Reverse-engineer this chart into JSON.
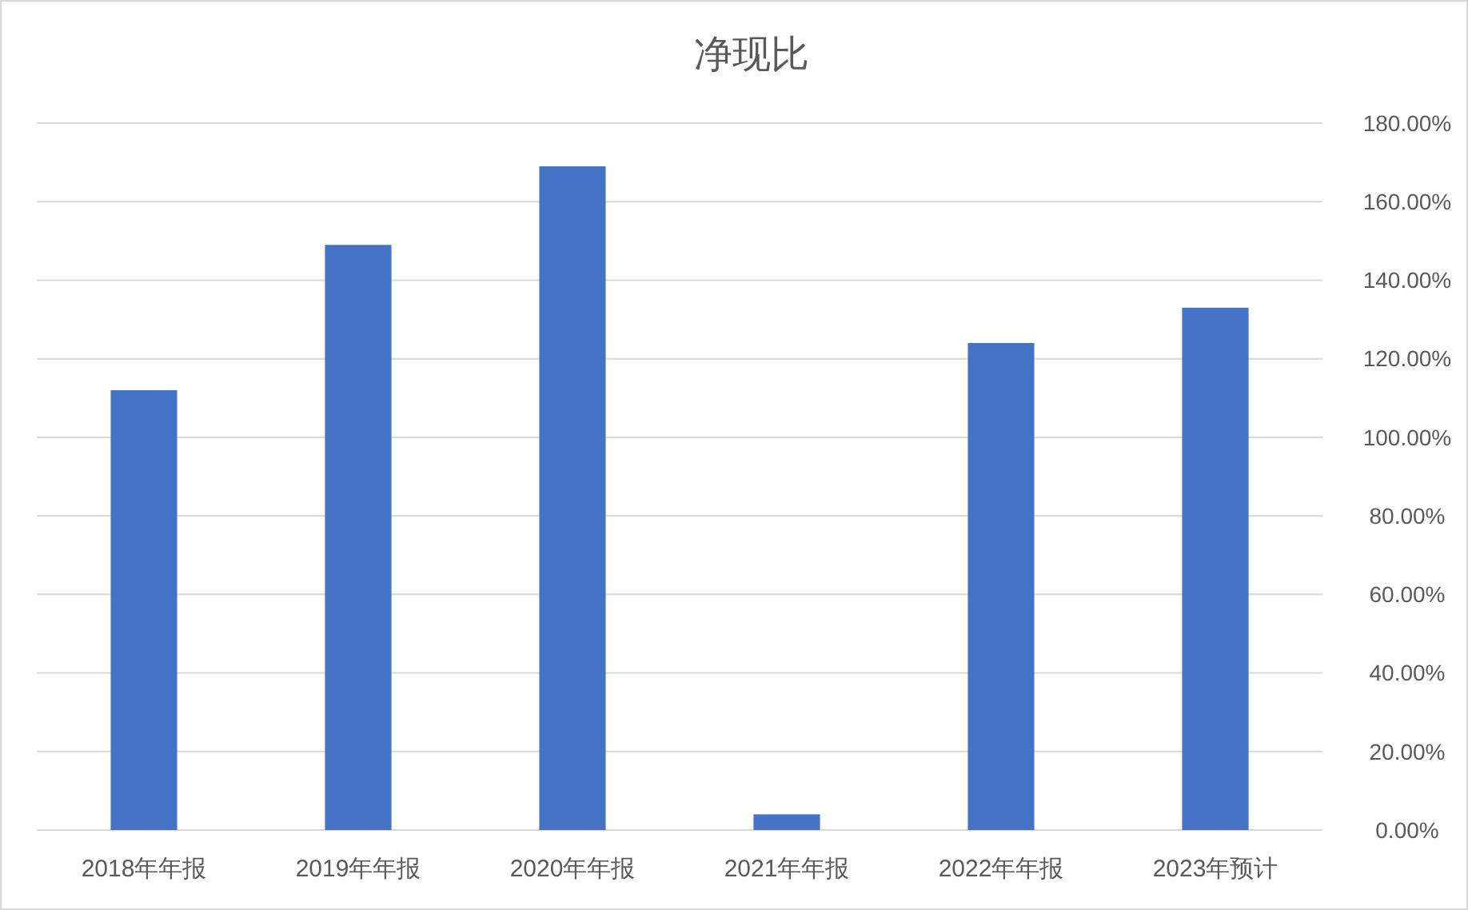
{
  "chart_data": {
    "type": "bar",
    "title": "净现比",
    "categories": [
      "2018年年报",
      "2019年年报",
      "2020年年报",
      "2021年年报",
      "2022年年报",
      "2023年预计"
    ],
    "values": [
      112,
      149,
      169,
      4,
      124,
      133
    ],
    "color": "#4472c4",
    "ylim": [
      0,
      180
    ],
    "yticks": [
      {
        "value": 0,
        "label": "0.00%"
      },
      {
        "value": 20,
        "label": "20.00%"
      },
      {
        "value": 40,
        "label": "40.00%"
      },
      {
        "value": 60,
        "label": "60.00%"
      },
      {
        "value": 80,
        "label": "80.00%"
      },
      {
        "value": 100,
        "label": "100.00%"
      },
      {
        "value": 120,
        "label": "120.00%"
      },
      {
        "value": 140,
        "label": "140.00%"
      },
      {
        "value": 160,
        "label": "160.00%"
      },
      {
        "value": 180,
        "label": "180.00%"
      }
    ],
    "grid": "y"
  }
}
